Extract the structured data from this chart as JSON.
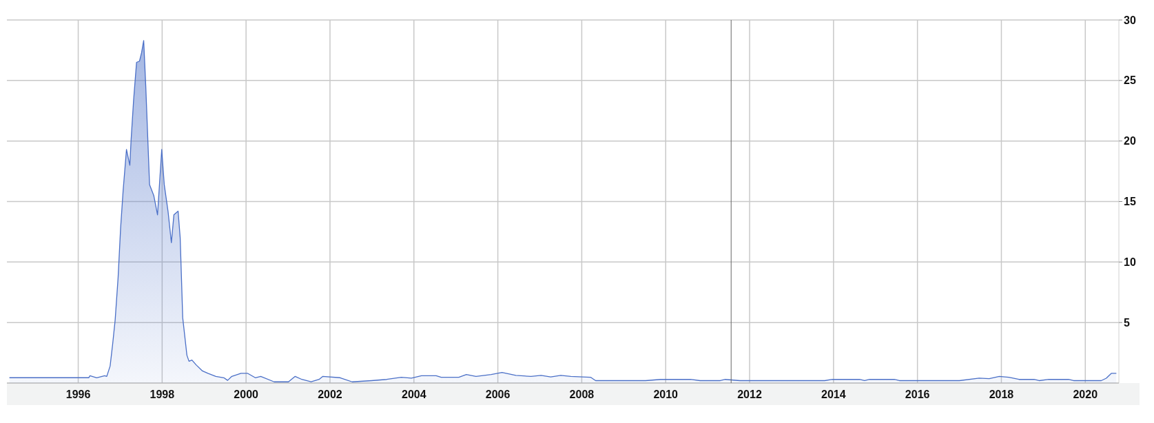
{
  "chart_data": {
    "type": "area",
    "x": [
      1994.36,
      1996.25,
      1996.28,
      1996.44,
      1996.63,
      1996.68,
      1996.76,
      1996.82,
      1996.88,
      1996.95,
      1997.01,
      1997.07,
      1997.15,
      1997.23,
      1997.26,
      1997.32,
      1997.39,
      1997.46,
      1997.51,
      1997.56,
      1997.61,
      1997.64,
      1997.7,
      1997.8,
      1997.89,
      1997.99,
      1998.05,
      1998.14,
      1998.22,
      1998.28,
      1998.38,
      1998.43,
      1998.49,
      1998.59,
      1998.64,
      1998.71,
      1998.81,
      1998.96,
      1999.09,
      1999.28,
      1999.47,
      1999.56,
      1999.66,
      1999.88,
      2000.04,
      2000.22,
      2000.35,
      2000.67,
      2001.01,
      2001.17,
      2001.33,
      2001.55,
      2001.74,
      2001.83,
      2002.24,
      2002.53,
      2002.99,
      2003.35,
      2003.7,
      2003.94,
      2004.18,
      2004.53,
      2004.65,
      2005.07,
      2005.25,
      2005.48,
      2005.84,
      2006.1,
      2006.43,
      2006.79,
      2007.03,
      2007.26,
      2007.5,
      2007.74,
      2008.21,
      2008.33,
      2009.52,
      2009.88,
      2010.59,
      2010.82,
      2011.3,
      2011.42,
      2011.77,
      2013.79,
      2013.97,
      2014.62,
      2014.74,
      2014.86,
      2015.45,
      2015.57,
      2017.0,
      2017.47,
      2017.71,
      2017.95,
      2018.18,
      2018.42,
      2018.78,
      2018.9,
      2019.13,
      2019.6,
      2019.72,
      2020.38,
      2020.5,
      2020.62,
      2020.74
    ],
    "series": [
      {
        "color": "#4a6fc7",
        "values": [
          0.44,
          0.44,
          0.6,
          0.44,
          0.6,
          0.55,
          1.4,
          3.2,
          5.2,
          8.7,
          12.8,
          15.9,
          19.3,
          18.0,
          20.1,
          23.4,
          26.5,
          26.6,
          27.3,
          28.3,
          24.5,
          21.8,
          16.4,
          15.5,
          13.9,
          19.3,
          16.4,
          14.2,
          11.6,
          13.9,
          14.2,
          12.0,
          5.4,
          2.3,
          1.8,
          1.9,
          1.5,
          1.0,
          0.8,
          0.55,
          0.44,
          0.22,
          0.55,
          0.8,
          0.8,
          0.44,
          0.55,
          0.1,
          0.1,
          0.55,
          0.3,
          0.1,
          0.3,
          0.55,
          0.44,
          0.1,
          0.2,
          0.3,
          0.48,
          0.4,
          0.6,
          0.6,
          0.48,
          0.48,
          0.7,
          0.55,
          0.7,
          0.87,
          0.63,
          0.55,
          0.63,
          0.5,
          0.63,
          0.55,
          0.48,
          0.2,
          0.2,
          0.3,
          0.3,
          0.2,
          0.2,
          0.3,
          0.2,
          0.2,
          0.3,
          0.3,
          0.2,
          0.3,
          0.3,
          0.2,
          0.2,
          0.4,
          0.36,
          0.55,
          0.48,
          0.3,
          0.3,
          0.2,
          0.3,
          0.3,
          0.2,
          0.2,
          0.4,
          0.8,
          0.8
        ]
      }
    ],
    "xlim": [
      1994.3,
      2020.8
    ],
    "xticks": [
      1996,
      1998,
      2000,
      2002,
      2004,
      2006,
      2008,
      2010,
      2012,
      2014,
      2016,
      2018,
      2020
    ],
    "ylim": [
      0,
      30
    ],
    "yticks": [
      5,
      10,
      15,
      20,
      25,
      30
    ],
    "grid": true,
    "ref_lines": [
      {
        "axis": "x",
        "value": 2011.56,
        "color": "#666666"
      }
    ]
  }
}
